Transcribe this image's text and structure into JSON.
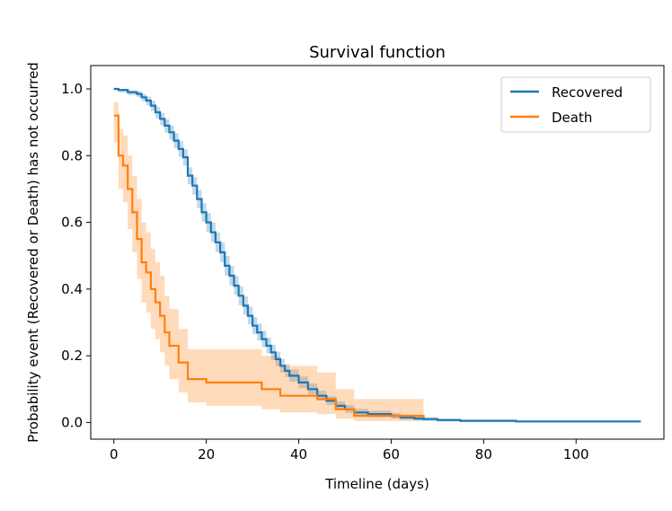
{
  "chart_data": {
    "type": "line",
    "title": "Survival function",
    "xlabel": "Timeline (days)",
    "ylabel": "Probability event (Recovered or Death) has not occurred",
    "xlim": [
      -5,
      119
    ],
    "ylim": [
      -0.05,
      1.07
    ],
    "x_ticks": [
      0,
      20,
      40,
      60,
      80,
      100
    ],
    "y_ticks": [
      0.0,
      0.2,
      0.4,
      0.6,
      0.8,
      1.0
    ],
    "x_tick_labels": [
      "0",
      "20",
      "40",
      "60",
      "80",
      "100"
    ],
    "y_tick_labels": [
      "0.0",
      "0.2",
      "0.4",
      "0.6",
      "0.8",
      "1.0"
    ],
    "grid": false,
    "legend_position": "top-right",
    "series": [
      {
        "name": "Recovered",
        "color": "#1f77b4",
        "step": true,
        "x": [
          0,
          1,
          3,
          5,
          6,
          7,
          8,
          9,
          10,
          11,
          12,
          13,
          14,
          15,
          16,
          17,
          18,
          19,
          20,
          21,
          22,
          23,
          24,
          25,
          26,
          27,
          28,
          29,
          30,
          31,
          32,
          33,
          34,
          35,
          36,
          37,
          38,
          40,
          42,
          44,
          46,
          48,
          50,
          52,
          55,
          60,
          62,
          65,
          67,
          70,
          75,
          87,
          114
        ],
        "y": [
          1.0,
          0.997,
          0.99,
          0.985,
          0.975,
          0.965,
          0.95,
          0.93,
          0.91,
          0.89,
          0.87,
          0.845,
          0.82,
          0.795,
          0.74,
          0.71,
          0.67,
          0.63,
          0.6,
          0.57,
          0.54,
          0.51,
          0.47,
          0.44,
          0.41,
          0.38,
          0.35,
          0.32,
          0.29,
          0.27,
          0.25,
          0.23,
          0.21,
          0.19,
          0.17,
          0.155,
          0.14,
          0.12,
          0.1,
          0.08,
          0.065,
          0.05,
          0.04,
          0.03,
          0.025,
          0.02,
          0.015,
          0.012,
          0.01,
          0.007,
          0.005,
          0.003,
          0.003
        ],
        "ci_lower": [
          1.0,
          0.99,
          0.982,
          0.975,
          0.963,
          0.951,
          0.934,
          0.912,
          0.891,
          0.869,
          0.848,
          0.822,
          0.796,
          0.77,
          0.714,
          0.683,
          0.642,
          0.602,
          0.571,
          0.541,
          0.511,
          0.481,
          0.441,
          0.411,
          0.382,
          0.352,
          0.323,
          0.294,
          0.265,
          0.246,
          0.226,
          0.207,
          0.188,
          0.169,
          0.15,
          0.136,
          0.122,
          0.103,
          0.084,
          0.066,
          0.052,
          0.038,
          0.029,
          0.02,
          0.016,
          0.012,
          0.008,
          0.006,
          0.005,
          0.003,
          0.002,
          0.001,
          0.001
        ],
        "ci_upper": [
          1.0,
          1.0,
          0.996,
          0.993,
          0.985,
          0.977,
          0.964,
          0.946,
          0.927,
          0.909,
          0.89,
          0.867,
          0.843,
          0.819,
          0.765,
          0.736,
          0.697,
          0.657,
          0.628,
          0.599,
          0.569,
          0.539,
          0.499,
          0.469,
          0.439,
          0.408,
          0.378,
          0.347,
          0.316,
          0.296,
          0.275,
          0.254,
          0.233,
          0.212,
          0.191,
          0.175,
          0.159,
          0.138,
          0.117,
          0.095,
          0.079,
          0.063,
          0.052,
          0.041,
          0.035,
          0.029,
          0.023,
          0.019,
          0.016,
          0.012,
          0.009,
          0.006,
          0.006
        ]
      },
      {
        "name": "Death",
        "color": "#ff7f0e",
        "step": true,
        "x": [
          0,
          1,
          2,
          3,
          4,
          5,
          6,
          7,
          8,
          9,
          10,
          11,
          12,
          14,
          16,
          20,
          28,
          32,
          36,
          44,
          48,
          52,
          67
        ],
        "y": [
          0.92,
          0.8,
          0.77,
          0.7,
          0.63,
          0.55,
          0.48,
          0.45,
          0.4,
          0.36,
          0.32,
          0.27,
          0.23,
          0.18,
          0.13,
          0.12,
          0.12,
          0.1,
          0.08,
          0.07,
          0.04,
          0.02,
          0.015
        ],
        "ci_lower": [
          0.84,
          0.7,
          0.66,
          0.58,
          0.51,
          0.43,
          0.36,
          0.33,
          0.28,
          0.25,
          0.21,
          0.17,
          0.13,
          0.09,
          0.06,
          0.05,
          0.05,
          0.04,
          0.03,
          0.025,
          0.012,
          0.004,
          0.003
        ],
        "ci_upper": [
          0.96,
          0.88,
          0.86,
          0.8,
          0.74,
          0.67,
          0.6,
          0.57,
          0.52,
          0.48,
          0.44,
          0.38,
          0.34,
          0.28,
          0.22,
          0.22,
          0.22,
          0.2,
          0.17,
          0.15,
          0.1,
          0.07,
          0.07
        ]
      }
    ]
  }
}
